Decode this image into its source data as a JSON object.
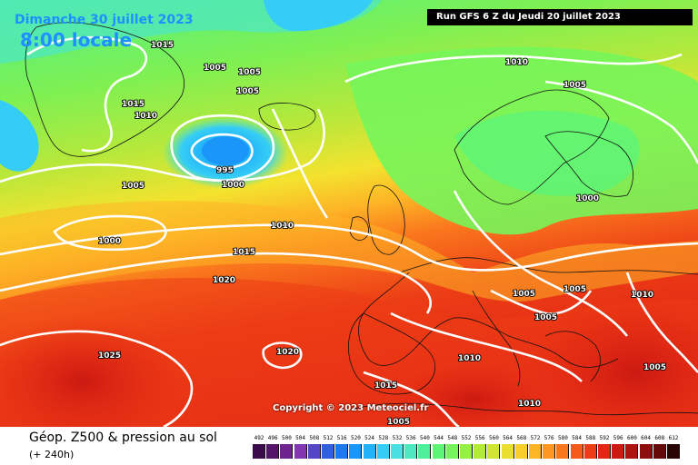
{
  "header": {
    "date": "Dimanche 30 juillet 2023",
    "time": "8:00 locale",
    "run": "Run GFS 6 Z du Jeudi 20 juillet 2023"
  },
  "copyright": "Copyright © 2023 Meteociel.fr",
  "footer": {
    "title": "Géop. Z500 & pression au sol",
    "subtitle": "(+ 240h)"
  },
  "legend": {
    "labels": [
      "492",
      "496",
      "500",
      "504",
      "508",
      "512",
      "516",
      "520",
      "524",
      "528",
      "532",
      "536",
      "540",
      "544",
      "548",
      "552",
      "556",
      "560",
      "564",
      "568",
      "572",
      "576",
      "580",
      "584",
      "588",
      "592",
      "596",
      "600",
      "604",
      "608",
      "612"
    ],
    "colors": [
      "#3a0a4a",
      "#55146b",
      "#6e2390",
      "#8237b0",
      "#5546c8",
      "#2f5fdc",
      "#1d79ee",
      "#1a95f8",
      "#22b2fa",
      "#35cdf5",
      "#4adfe2",
      "#4fe8c0",
      "#4ef09c",
      "#5cf578",
      "#76f55a",
      "#95f046",
      "#b4ea3a",
      "#d1e632",
      "#eadf2e",
      "#f8cf2a",
      "#fdb526",
      "#fd9722",
      "#fa781d",
      "#f45a19",
      "#ec3d16",
      "#e22714",
      "#cc1a12",
      "#ad1310",
      "#8d0f0d",
      "#640b0a",
      "#2a0505"
    ]
  },
  "isobars": [
    "1015",
    "1005",
    "1005",
    "1005",
    "1015",
    "1010",
    "1010",
    "1005",
    "995",
    "1005",
    "1000",
    "1000",
    "1010",
    "1015",
    "1020",
    "1000",
    "1005",
    "1005",
    "1010",
    "1025",
    "1020",
    "1010",
    "1015",
    "1005",
    "1005",
    "1010",
    "1005"
  ]
}
